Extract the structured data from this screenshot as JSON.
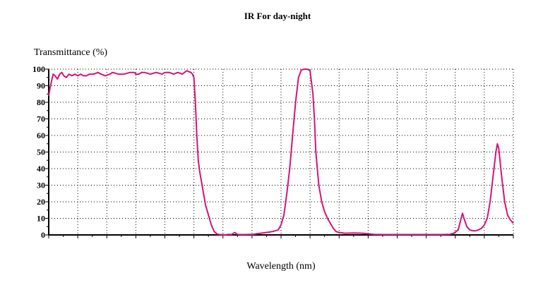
{
  "chart_data": {
    "type": "line",
    "title": "IR For day-night",
    "xlabel": "Wavelength (nm)",
    "ylabel": "Transmittance (%)",
    "ylim": [
      0,
      100
    ],
    "y_ticks": [
      0,
      10,
      20,
      30,
      40,
      50,
      60,
      70,
      80,
      90,
      100
    ],
    "xlim": [
      0,
      16
    ],
    "x_tick_labels_shown": false,
    "grid": true,
    "grid_style": "dotted",
    "line_color": "#d6137a",
    "series": [
      {
        "x": [
          0.0,
          0.05,
          0.1,
          0.15,
          0.22,
          0.3,
          0.38,
          0.45,
          0.52,
          0.6,
          0.7,
          0.8,
          0.9,
          1.0,
          1.1,
          1.2,
          1.3,
          1.4,
          1.55,
          1.7,
          1.8,
          1.95,
          2.1,
          2.2,
          2.4,
          2.6,
          2.8,
          2.95,
          3.0,
          3.1,
          3.2,
          3.3,
          3.5,
          3.7,
          3.9,
          4.0,
          4.15,
          4.3,
          4.45,
          4.6,
          4.75,
          4.9,
          4.95,
          5.0,
          5.05,
          5.1,
          5.15,
          5.2,
          5.3,
          5.4,
          5.5,
          5.6,
          5.7,
          5.8,
          5.9,
          6.0,
          6.1,
          6.2,
          6.3,
          6.4,
          6.5,
          6.6,
          6.7,
          6.8,
          6.9,
          7.0,
          7.1,
          7.3,
          7.5,
          7.7,
          7.9,
          8.0,
          8.1,
          8.2,
          8.3,
          8.4,
          8.5,
          8.6,
          8.7,
          8.8,
          8.9,
          9.0,
          9.1,
          9.15,
          9.2,
          9.3,
          9.4,
          9.5,
          9.6,
          9.7,
          9.8,
          9.9,
          10.0,
          10.2,
          10.5,
          10.8,
          11.2,
          11.6,
          12.0,
          12.5,
          13.0,
          13.5,
          13.8,
          13.95,
          14.1,
          14.2,
          14.25,
          14.3,
          14.4,
          14.5,
          14.6,
          14.7,
          14.8,
          14.9,
          15.0,
          15.1,
          15.2,
          15.3,
          15.4,
          15.45,
          15.5,
          15.6,
          15.7,
          15.8,
          15.9,
          16.0
        ],
        "y": [
          84,
          89,
          93,
          97,
          96,
          94,
          97,
          98,
          96,
          95,
          97,
          96,
          97,
          96,
          97,
          96,
          96,
          97,
          97,
          98,
          97,
          96,
          97,
          98,
          97,
          97,
          98,
          98,
          97,
          97,
          98,
          98,
          97,
          98,
          97,
          98,
          98,
          97,
          98,
          97,
          99,
          98,
          97,
          95,
          80,
          60,
          45,
          38,
          28,
          18,
          12,
          6,
          2,
          0.5,
          0.2,
          0.1,
          0.1,
          0.3,
          0.2,
          1.5,
          0.3,
          0.2,
          0.2,
          0.2,
          0.3,
          0.2,
          0.5,
          1.0,
          1.5,
          2.0,
          3.0,
          6.0,
          12.0,
          25.0,
          40.0,
          60.0,
          80.0,
          95.0,
          99.5,
          100.0,
          100.0,
          99.0,
          85.0,
          70.0,
          50.0,
          30.0,
          20.0,
          14.0,
          10.0,
          7.0,
          4.0,
          2.0,
          1.5,
          1.0,
          1.2,
          1.0,
          0.3,
          0.2,
          0.2,
          0.2,
          0.2,
          0.2,
          0.3,
          1.0,
          3.0,
          10.0,
          13.0,
          10.0,
          5.0,
          3.0,
          2.5,
          2.5,
          3.0,
          4.0,
          6.0,
          10.0,
          20.0,
          35.0,
          50.0,
          55.0,
          52.0,
          35.0,
          20.0,
          12.0,
          9.0,
          7.0
        ]
      }
    ]
  }
}
